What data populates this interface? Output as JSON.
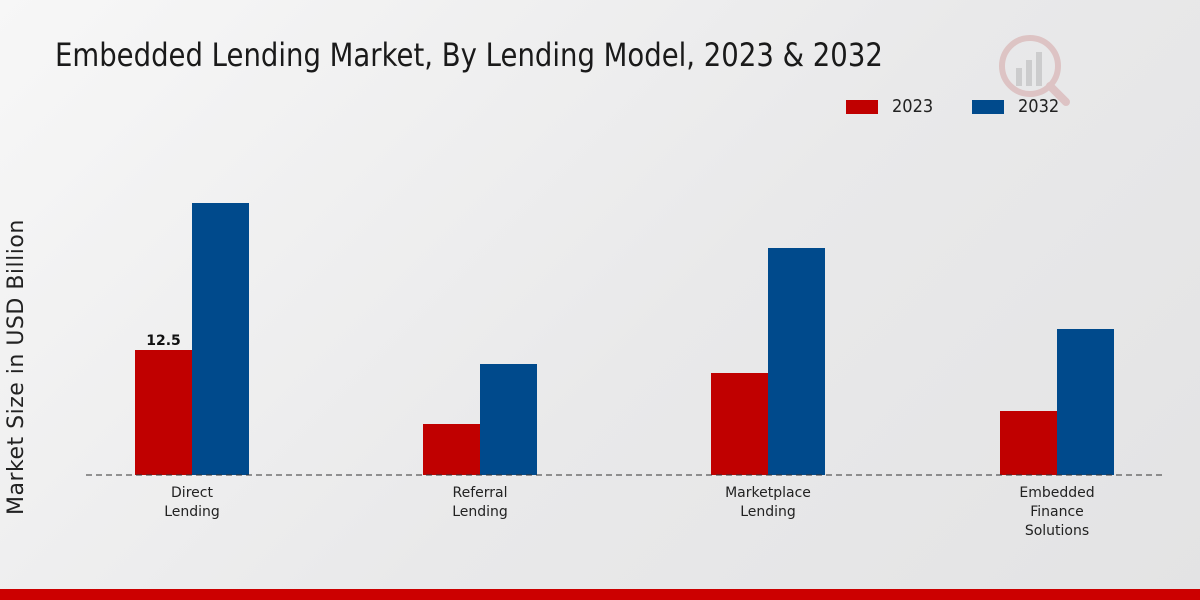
{
  "chart_data": {
    "type": "bar",
    "title": "Embedded Lending Market, By Lending Model, 2023 & 2032",
    "xlabel": "",
    "ylabel": "Market Size in USD Billion",
    "categories": [
      [
        "Direct",
        "Lending"
      ],
      [
        "Referral",
        "Lending"
      ],
      [
        "Marketplace",
        "Lending"
      ],
      [
        "Embedded",
        "Finance",
        "Solutions"
      ]
    ],
    "series": [
      {
        "name": "2023",
        "color": "#c00000",
        "values": [
          12.5,
          5.1,
          10.2,
          6.4
        ]
      },
      {
        "name": "2032",
        "color": "#004a8c",
        "values": [
          27.2,
          11.1,
          22.7,
          14.6
        ]
      }
    ],
    "data_labels": [
      {
        "series": 0,
        "index": 0,
        "text": "12.5"
      }
    ],
    "ylim": [
      0,
      40
    ],
    "legend_position": "top-right",
    "grid": false
  },
  "colors": {
    "accent": "#cc0000"
  }
}
